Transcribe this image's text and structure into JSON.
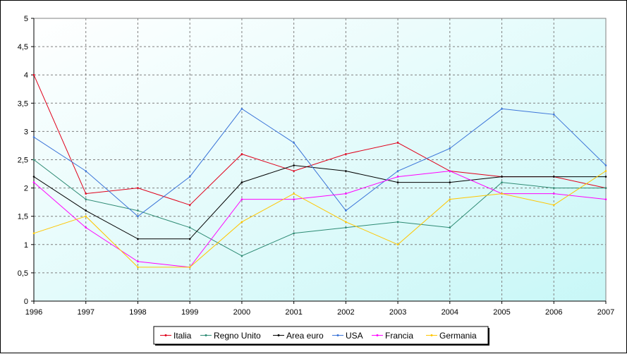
{
  "chart_data": {
    "type": "line",
    "title": "",
    "xlabel": "",
    "ylabel": "",
    "x": [
      "1996",
      "1997",
      "1998",
      "1999",
      "2000",
      "2001",
      "2002",
      "2003",
      "2004",
      "2005",
      "2006",
      "2007"
    ],
    "ylim": [
      0,
      5
    ],
    "yticks": [
      "0",
      "0,5",
      "1",
      "1,5",
      "2",
      "2,5",
      "3",
      "3,5",
      "4",
      "4,5",
      "5"
    ],
    "grid": true,
    "legend_position": "bottom",
    "background": [
      "#ffffff",
      "#c8f7f7"
    ],
    "series": [
      {
        "name": "Italia",
        "color": "#e0001a",
        "values": [
          4.0,
          1.9,
          2.0,
          1.7,
          2.6,
          2.3,
          2.6,
          2.8,
          2.3,
          2.2,
          2.2,
          2.0
        ]
      },
      {
        "name": "Regno Unito",
        "color": "#2e8b74",
        "values": [
          2.5,
          1.8,
          1.6,
          1.3,
          0.8,
          1.2,
          1.3,
          1.4,
          1.3,
          2.1,
          2.0,
          2.0
        ]
      },
      {
        "name": "Area euro",
        "color": "#000000",
        "values": [
          2.2,
          1.6,
          1.1,
          1.1,
          2.1,
          2.4,
          2.3,
          2.1,
          2.1,
          2.2,
          2.2,
          2.2
        ]
      },
      {
        "name": "USA",
        "color": "#3b74d8",
        "values": [
          2.9,
          2.3,
          1.5,
          2.2,
          3.4,
          2.8,
          1.6,
          2.3,
          2.7,
          3.4,
          3.3,
          2.4
        ]
      },
      {
        "name": "Francia",
        "color": "#ff00ff",
        "values": [
          2.1,
          1.3,
          0.7,
          0.6,
          1.8,
          1.8,
          1.9,
          2.2,
          2.3,
          1.9,
          1.9,
          1.8
        ]
      },
      {
        "name": "Germania",
        "color": "#ffc600",
        "values": [
          1.2,
          1.5,
          0.6,
          0.6,
          1.4,
          1.9,
          1.4,
          1.0,
          1.8,
          1.9,
          1.7,
          2.3
        ]
      }
    ]
  }
}
